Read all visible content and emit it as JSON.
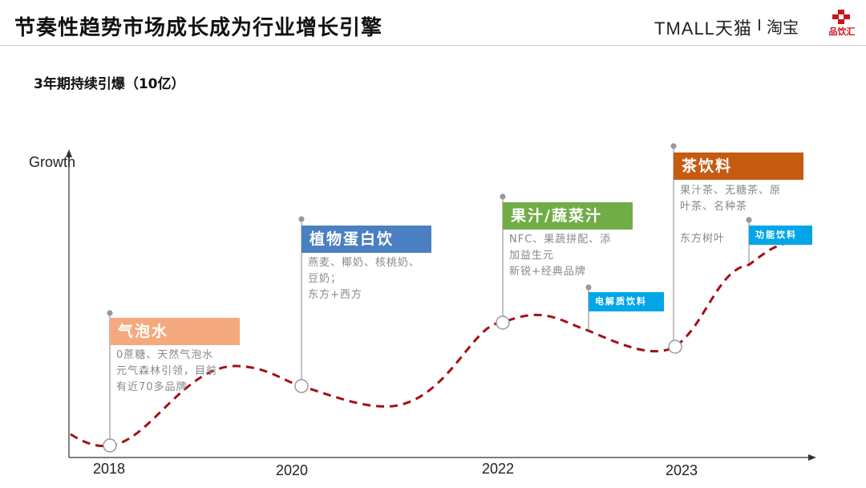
{
  "header": {
    "title": "节奏性趋势市场成长成为行业增长引擎",
    "logo_tmall": "TMALL天猫",
    "logo_taobao": "淘宝",
    "logo_pinyinhui": "品饮汇"
  },
  "subtitle": "3年期持续引爆（10亿）",
  "axis": {
    "y_label": "Growth"
  },
  "years": [
    "2018",
    "2020",
    "2022",
    "2023"
  ],
  "stages": [
    {
      "name": "气泡水",
      "color": "#f4a97f",
      "desc": [
        "0蔗糖、天然气泡水",
        "元气森林引领，目前",
        "有近70多品牌"
      ]
    },
    {
      "name": "植物蛋白饮",
      "color": "#4a7fc1",
      "desc": [
        "燕麦、椰奶、核桃奶、",
        "豆奶；",
        "东方+西方"
      ]
    },
    {
      "name": "果汁/蔬菜汁",
      "color": "#70ad47",
      "desc": [
        "NFC、果蔬拼配、添",
        "加益生元",
        "新锐+经典品牌"
      ]
    },
    {
      "name": "电解质饮料",
      "color": "#00a6e8",
      "desc": []
    },
    {
      "name": "茶饮料",
      "color": "#c55a11",
      "desc": [
        "果汁茶、无糖茶、原",
        "叶茶、名种茶",
        "",
        "东方树叶"
      ]
    },
    {
      "name": "功能饮料",
      "color": "#00a6e8",
      "desc": []
    }
  ],
  "colors": {
    "trend_line": "#a50f15",
    "axis": "#333333",
    "pin": "#999999"
  }
}
